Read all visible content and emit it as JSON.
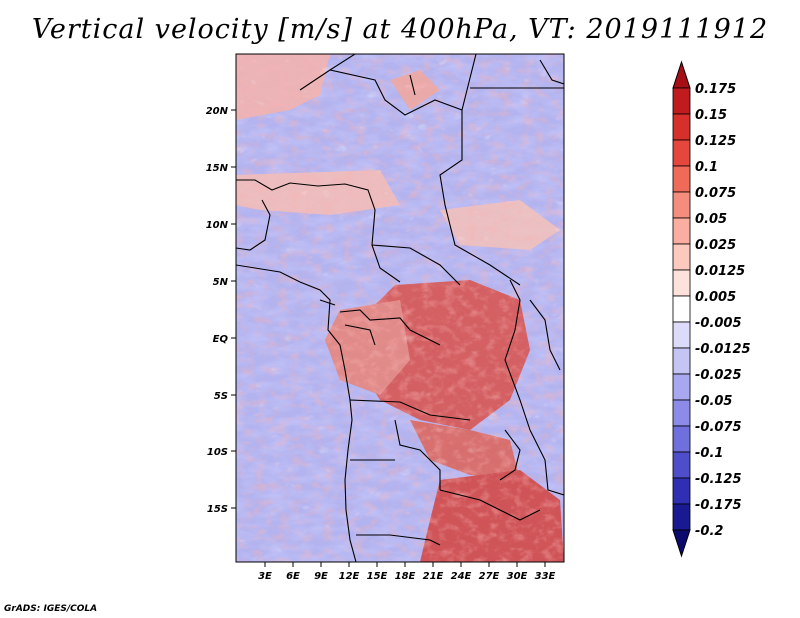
{
  "title": "Vertical velocity [m/s] at 400hPa, VT: 2019111912",
  "credit": "GrADS: IGES/COLA",
  "map": {
    "region": "Central and Southern Africa",
    "variable": "Vertical velocity",
    "units": "m/s",
    "level": "400hPa",
    "lon_range": [
      0,
      35
    ],
    "lat_range": [
      -20,
      24.5
    ],
    "lon_ticks": [
      "3E",
      "6E",
      "9E",
      "12E",
      "15E",
      "18E",
      "21E",
      "24E",
      "27E",
      "30E",
      "33E"
    ],
    "lat_ticks": [
      "20N",
      "15N",
      "10N",
      "5N",
      "EQ",
      "5S",
      "10S",
      "15S"
    ]
  },
  "colorbar": {
    "labels": [
      "0.175",
      "0.15",
      "0.125",
      "0.1",
      "0.075",
      "0.05",
      "0.025",
      "0.0125",
      "0.005",
      "-0.005",
      "-0.0125",
      "-0.025",
      "-0.05",
      "-0.075",
      "-0.1",
      "-0.125",
      "-0.175",
      "-0.2"
    ],
    "colors": [
      "#a50f15",
      "#c01c20",
      "#d62f2c",
      "#e5473e",
      "#f06a5a",
      "#f58d7e",
      "#f9aea1",
      "#fcc9be",
      "#fde2dc",
      "#ffffff",
      "#dcdcfa",
      "#c4c4f5",
      "#a8a8f0",
      "#8c8ce8",
      "#6f6fdd",
      "#4e4ecb",
      "#2f2fb3",
      "#191991",
      "#0b0b6e"
    ]
  }
}
